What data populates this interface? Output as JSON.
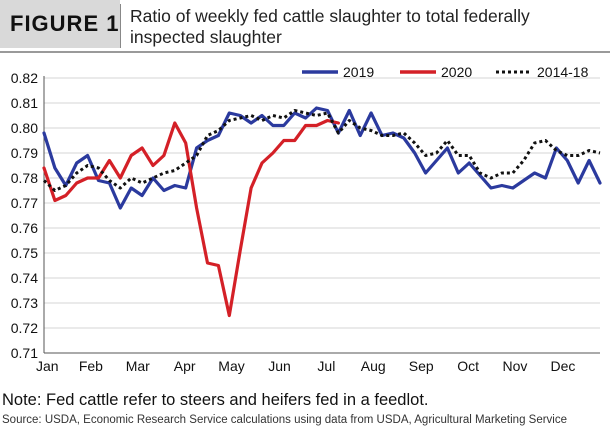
{
  "header": {
    "figure_label": "FIGURE 1",
    "title": "Ratio of weekly fed cattle slaughter to total federally inspected slaughter"
  },
  "note": "Note: Fed cattle refer to steers and heifers fed in a feedlot.",
  "source": "Source: USDA, Economic Research Service calculations using data from USDA, Agricultural Marketing Service",
  "chart_data": {
    "type": "line",
    "title": "",
    "xlabel": "",
    "ylabel": "",
    "ylim": [
      0.71,
      0.82
    ],
    "xlim": [
      1,
      52
    ],
    "yticks": [
      "0.71",
      "0.72",
      "0.73",
      "0.74",
      "0.75",
      "0.76",
      "0.77",
      "0.78",
      "0.79",
      "0.80",
      "0.81",
      "0.82"
    ],
    "xtick_labels": [
      "Jan",
      "Feb",
      "Mar",
      "Apr",
      "May",
      "Jun",
      "Jul",
      "Aug",
      "Sep",
      "Oct",
      "Nov",
      "Dec"
    ],
    "xtick_weeks": [
      1.3,
      5.3,
      9.6,
      13.9,
      18.2,
      22.6,
      26.9,
      31.2,
      35.6,
      39.9,
      44.2,
      48.6
    ],
    "grid": "horizontal",
    "legend_position": "top-right",
    "series": [
      {
        "name": "2019",
        "color": "#2b3a9e",
        "style": "solid",
        "x": [
          1,
          2,
          3,
          4,
          5,
          6,
          7,
          8,
          9,
          10,
          11,
          12,
          13,
          14,
          15,
          16,
          17,
          18,
          19,
          20,
          21,
          22,
          23,
          24,
          25,
          26,
          27,
          28,
          29,
          30,
          31,
          32,
          33,
          34,
          35,
          36,
          37,
          38,
          39,
          40,
          41,
          42,
          43,
          44,
          45,
          46,
          47,
          48,
          49,
          50,
          51,
          52
        ],
        "values": [
          0.798,
          0.784,
          0.777,
          0.786,
          0.789,
          0.779,
          0.778,
          0.768,
          0.776,
          0.773,
          0.78,
          0.775,
          0.777,
          0.776,
          0.792,
          0.795,
          0.797,
          0.806,
          0.805,
          0.802,
          0.805,
          0.801,
          0.801,
          0.806,
          0.804,
          0.808,
          0.807,
          0.798,
          0.807,
          0.797,
          0.806,
          0.797,
          0.798,
          0.796,
          0.79,
          0.782,
          0.787,
          0.792,
          0.782,
          0.786,
          0.781,
          0.776,
          0.777,
          0.776,
          0.779,
          0.782,
          0.78,
          0.792,
          0.787,
          0.778,
          0.787,
          0.778
        ]
      },
      {
        "name": "2020",
        "color": "#d42027",
        "style": "solid",
        "x": [
          1,
          2,
          3,
          4,
          5,
          6,
          7,
          8,
          9,
          10,
          11,
          12,
          13,
          14,
          15,
          16,
          17,
          18,
          19,
          20,
          21,
          22,
          23,
          24,
          25,
          26,
          27,
          28
        ],
        "values": [
          0.784,
          0.771,
          0.773,
          0.778,
          0.78,
          0.78,
          0.787,
          0.78,
          0.789,
          0.792,
          0.785,
          0.789,
          0.802,
          0.794,
          0.768,
          0.746,
          0.745,
          0.725,
          0.751,
          0.776,
          0.786,
          0.79,
          0.795,
          0.795,
          0.801,
          0.801,
          0.803,
          0.802
        ]
      },
      {
        "name": "2014-18",
        "color": "#111111",
        "style": "dotted",
        "x": [
          1,
          2,
          3,
          4,
          5,
          6,
          7,
          8,
          9,
          10,
          11,
          12,
          13,
          14,
          15,
          16,
          17,
          18,
          19,
          20,
          21,
          22,
          23,
          24,
          25,
          26,
          27,
          28,
          29,
          30,
          31,
          32,
          33,
          34,
          35,
          36,
          37,
          38,
          39,
          40,
          41,
          42,
          43,
          44,
          45,
          46,
          47,
          48,
          49,
          50,
          51,
          52
        ],
        "values": [
          0.779,
          0.775,
          0.777,
          0.782,
          0.785,
          0.784,
          0.779,
          0.776,
          0.78,
          0.778,
          0.78,
          0.782,
          0.783,
          0.786,
          0.789,
          0.797,
          0.799,
          0.803,
          0.804,
          0.805,
          0.803,
          0.805,
          0.804,
          0.807,
          0.806,
          0.805,
          0.806,
          0.798,
          0.803,
          0.8,
          0.799,
          0.797,
          0.797,
          0.798,
          0.794,
          0.789,
          0.79,
          0.795,
          0.789,
          0.789,
          0.782,
          0.78,
          0.782,
          0.782,
          0.787,
          0.794,
          0.795,
          0.791,
          0.789,
          0.789,
          0.791,
          0.79
        ]
      }
    ]
  }
}
